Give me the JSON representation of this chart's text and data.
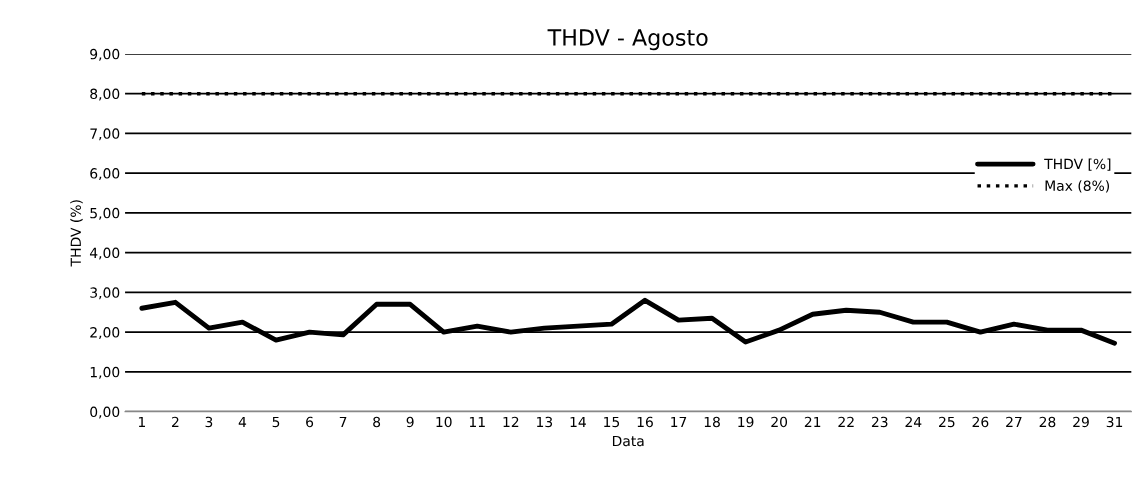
{
  "chart_data": {
    "type": "line",
    "title": "THDV - Agosto",
    "xlabel": "Data",
    "ylabel": "THDV (%)",
    "categories": [
      "1",
      "2",
      "3",
      "4",
      "5",
      "6",
      "7",
      "8",
      "9",
      "10",
      "11",
      "12",
      "13",
      "14",
      "15",
      "16",
      "17",
      "18",
      "19",
      "20",
      "21",
      "22",
      "23",
      "24",
      "25",
      "26",
      "27",
      "28",
      "29",
      "31"
    ],
    "series": [
      {
        "name": "THDV [%]",
        "color": "#000000",
        "line_style": "solid",
        "values": [
          2.6,
          2.75,
          2.1,
          2.25,
          1.8,
          2.0,
          1.93,
          2.7,
          2.7,
          2.0,
          2.15,
          2.0,
          2.1,
          2.15,
          2.2,
          2.8,
          2.3,
          2.35,
          1.75,
          2.05,
          2.45,
          2.55,
          2.5,
          2.25,
          2.25,
          2.0,
          2.2,
          2.05,
          2.05,
          1.72
        ]
      },
      {
        "name": "Max (8%)",
        "color": "#000000",
        "line_style": "dotted",
        "values": [
          8,
          8,
          8,
          8,
          8,
          8,
          8,
          8,
          8,
          8,
          8,
          8,
          8,
          8,
          8,
          8,
          8,
          8,
          8,
          8,
          8,
          8,
          8,
          8,
          8,
          8,
          8,
          8,
          8,
          8
        ]
      }
    ],
    "ylim": [
      0,
      9
    ],
    "yticks": [
      {
        "value": 0,
        "label": "0,00"
      },
      {
        "value": 1,
        "label": "1,00"
      },
      {
        "value": 2,
        "label": "2,00"
      },
      {
        "value": 3,
        "label": "3,00"
      },
      {
        "value": 4,
        "label": "4,00"
      },
      {
        "value": 5,
        "label": "5,00"
      },
      {
        "value": 6,
        "label": "6,00"
      },
      {
        "value": 7,
        "label": "7,00"
      },
      {
        "value": 8,
        "label": "8,00"
      },
      {
        "value": 9,
        "label": "9,00"
      }
    ],
    "grid": "y",
    "legend": "right",
    "marker": "none"
  }
}
